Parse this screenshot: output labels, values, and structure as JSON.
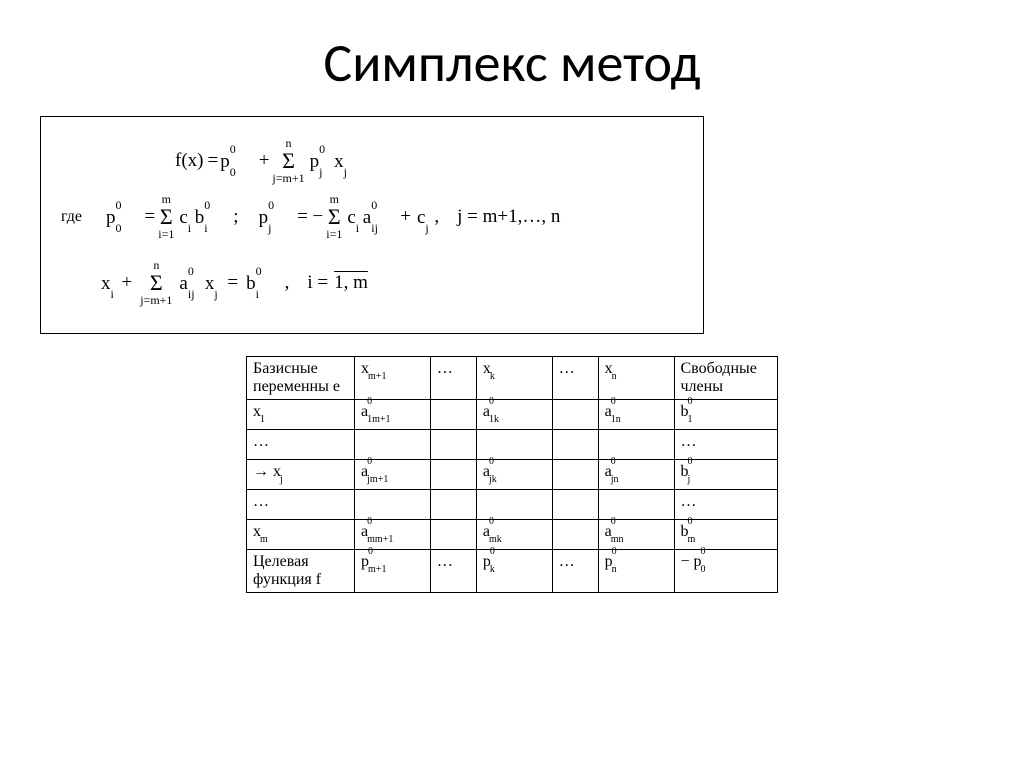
{
  "title": "Симплекс метод",
  "formulas": {
    "fx_lhs": "f(x)",
    "eq": "=",
    "p00_base": "p",
    "p00_sup": "0",
    "p00_sub": "0",
    "plus": "+",
    "sum1_top": "n",
    "sum1_bot": "j=m+1",
    "pj0_base": "p",
    "pj0_sup": "0",
    "pj0_sub": "j",
    "xj_base": "x",
    "xj_sub": "j",
    "where": "где",
    "sum2_top": "m",
    "sum2_bot": "i=1",
    "ci_base": "c",
    "ci_sub": "i",
    "bi0_base": "b",
    "bi0_sup": "0",
    "bi0_sub": "i",
    "semicolon": ";",
    "neg": "= −",
    "aij0_base": "a",
    "aij0_sup": "0",
    "aij0_sub": "ij",
    "plus_cj": "+",
    "cj_base": "c",
    "cj_sub": "j",
    "comma": ",",
    "j_range": "j = m+1,…, n",
    "xi_base": "x",
    "xi_sub": "i",
    "sum3_top": "n",
    "sum3_bot": "j=m+1",
    "eq2": "=",
    "i_eq": "i =",
    "i_range": "1, m"
  },
  "table": {
    "headers": {
      "c0": "Базисные переменны е",
      "c1_base": "x",
      "c1_sub": "m+1",
      "c2": "…",
      "c3_base": "x",
      "c3_sub": "k",
      "c4": "…",
      "c5_base": "x",
      "c5_sub": "n",
      "c6": "Свободные члены"
    },
    "rows": [
      {
        "c0_base": "x",
        "c0_sub": "1",
        "c1_base": "a",
        "c1_sup": "0",
        "c1_sub": "1m+1",
        "c2": "",
        "c3_base": "a",
        "c3_sup": "0",
        "c3_sub": "1k",
        "c4": "",
        "c5_base": "a",
        "c5_sup": "0",
        "c5_sub": "1n",
        "c6_base": "b",
        "c6_sup": "0",
        "c6_sub": "1"
      },
      {
        "c0": "…",
        "c1": "",
        "c2": "",
        "c3": "",
        "c4": "",
        "c5": "",
        "c6": "…"
      },
      {
        "c0_prefix": "→ ",
        "c0_base": "x",
        "c0_sub": "j",
        "c1_base": "a",
        "c1_sup": "0",
        "c1_sub": "jm+1",
        "c2": "",
        "c3_base": "a",
        "c3_sup": "0",
        "c3_sub": "jk",
        "c4": "",
        "c5_base": "a",
        "c5_sup": "0",
        "c5_sub": "jn",
        "c6_base": "b",
        "c6_sup": "0",
        "c6_sub": "j"
      },
      {
        "c0": "…",
        "c1": "",
        "c2": "",
        "c3": "",
        "c4": "",
        "c5": "",
        "c6": "…"
      },
      {
        "c0_base": "x",
        "c0_sub": "m",
        "c1_base": "a",
        "c1_sup": "0",
        "c1_sub": "mm+1",
        "c2": "",
        "c3_base": "a",
        "c3_sup": "0",
        "c3_sub": "mk",
        "c4": "",
        "c5_base": "a",
        "c5_sup": "0",
        "c5_sub": "mn",
        "c6_base": "b",
        "c6_sup": "0",
        "c6_sub": "m"
      },
      {
        "c0": "Целевая функция f",
        "c1_base": "p",
        "c1_sup": "0",
        "c1_sub": "m+1",
        "c2": "…",
        "c3_base": "p",
        "c3_sup": "0",
        "c3_sub": "k",
        "c4": "…",
        "c5_base": "p",
        "c5_sup": "0",
        "c5_sub": "n",
        "c6_prefix": "− ",
        "c6_base": "p",
        "c6_sup": "0",
        "c6_sub": "0"
      }
    ]
  },
  "colors": {
    "text": "#000000",
    "background": "#ffffff",
    "border": "#000000"
  }
}
